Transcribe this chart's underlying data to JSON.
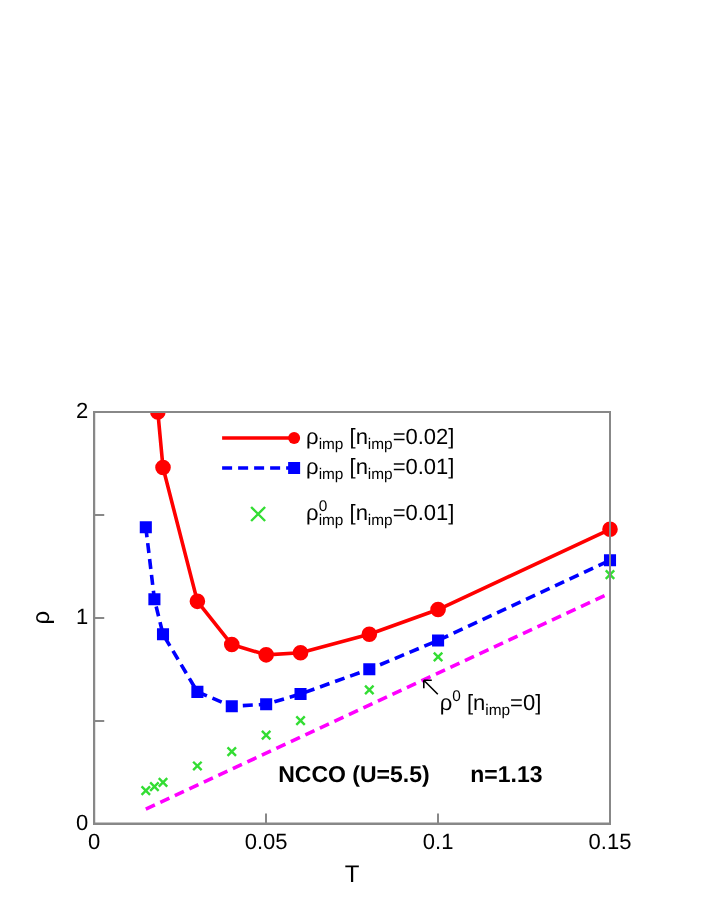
{
  "chart_data": {
    "type": "line",
    "xlabel": "T",
    "ylabel": "ρ",
    "xlim": [
      0,
      0.15
    ],
    "xticks": [
      0,
      0.05,
      0.1,
      0.15
    ],
    "ylim": [
      0,
      2
    ],
    "yticks": [
      0,
      {
        "value": 0.5,
        "label": null
      },
      1,
      {
        "value": 1.5,
        "label": null
      },
      2
    ],
    "grid": false,
    "legend": "top",
    "series": [
      {
        "name": "ρ$_{imp}$ [n$_{imp}$=0.02]",
        "color": "#ff0000",
        "marker": "circle",
        "line_style": "solid",
        "x": [
          0.0185,
          0.02,
          0.03,
          0.04,
          0.05,
          0.06,
          0.08,
          0.1,
          0.15
        ],
        "values": [
          2.0,
          1.73,
          1.08,
          0.87,
          0.82,
          0.83,
          0.92,
          1.04,
          1.43
        ]
      },
      {
        "name": "ρ$_{imp}$ [n$_{imp}$=0.01]",
        "color": "#0000ff",
        "marker": "square",
        "line_style": "dashed",
        "x": [
          0.015,
          0.0175,
          0.02,
          0.03,
          0.04,
          0.05,
          0.06,
          0.08,
          0.1,
          0.15
        ],
        "values": [
          1.44,
          1.09,
          0.92,
          0.64,
          0.57,
          0.58,
          0.63,
          0.75,
          0.89,
          1.28
        ]
      },
      {
        "name": "ρ$^{0}$$_{imp}$ [n$_{imp}$=0.01]",
        "type": "scatter",
        "color": "#33dd33",
        "marker": "cross",
        "x": [
          0.015,
          0.0175,
          0.02,
          0.03,
          0.04,
          0.05,
          0.06,
          0.08,
          0.1,
          0.15
        ],
        "values": [
          0.16,
          0.18,
          0.2,
          0.28,
          0.35,
          0.43,
          0.5,
          0.65,
          0.81,
          1.21
        ]
      },
      {
        "color": "#ff00ff",
        "marker": "none",
        "line_style": "dashed",
        "x": [
          0.015,
          0.15
        ],
        "values": [
          0.07,
          1.12
        ]
      }
    ],
    "annotations": [
      "ρ$^{0}$ [n$_{imp}$=0]",
      "NCCO (U=5.5)",
      "n=1.13"
    ]
  }
}
